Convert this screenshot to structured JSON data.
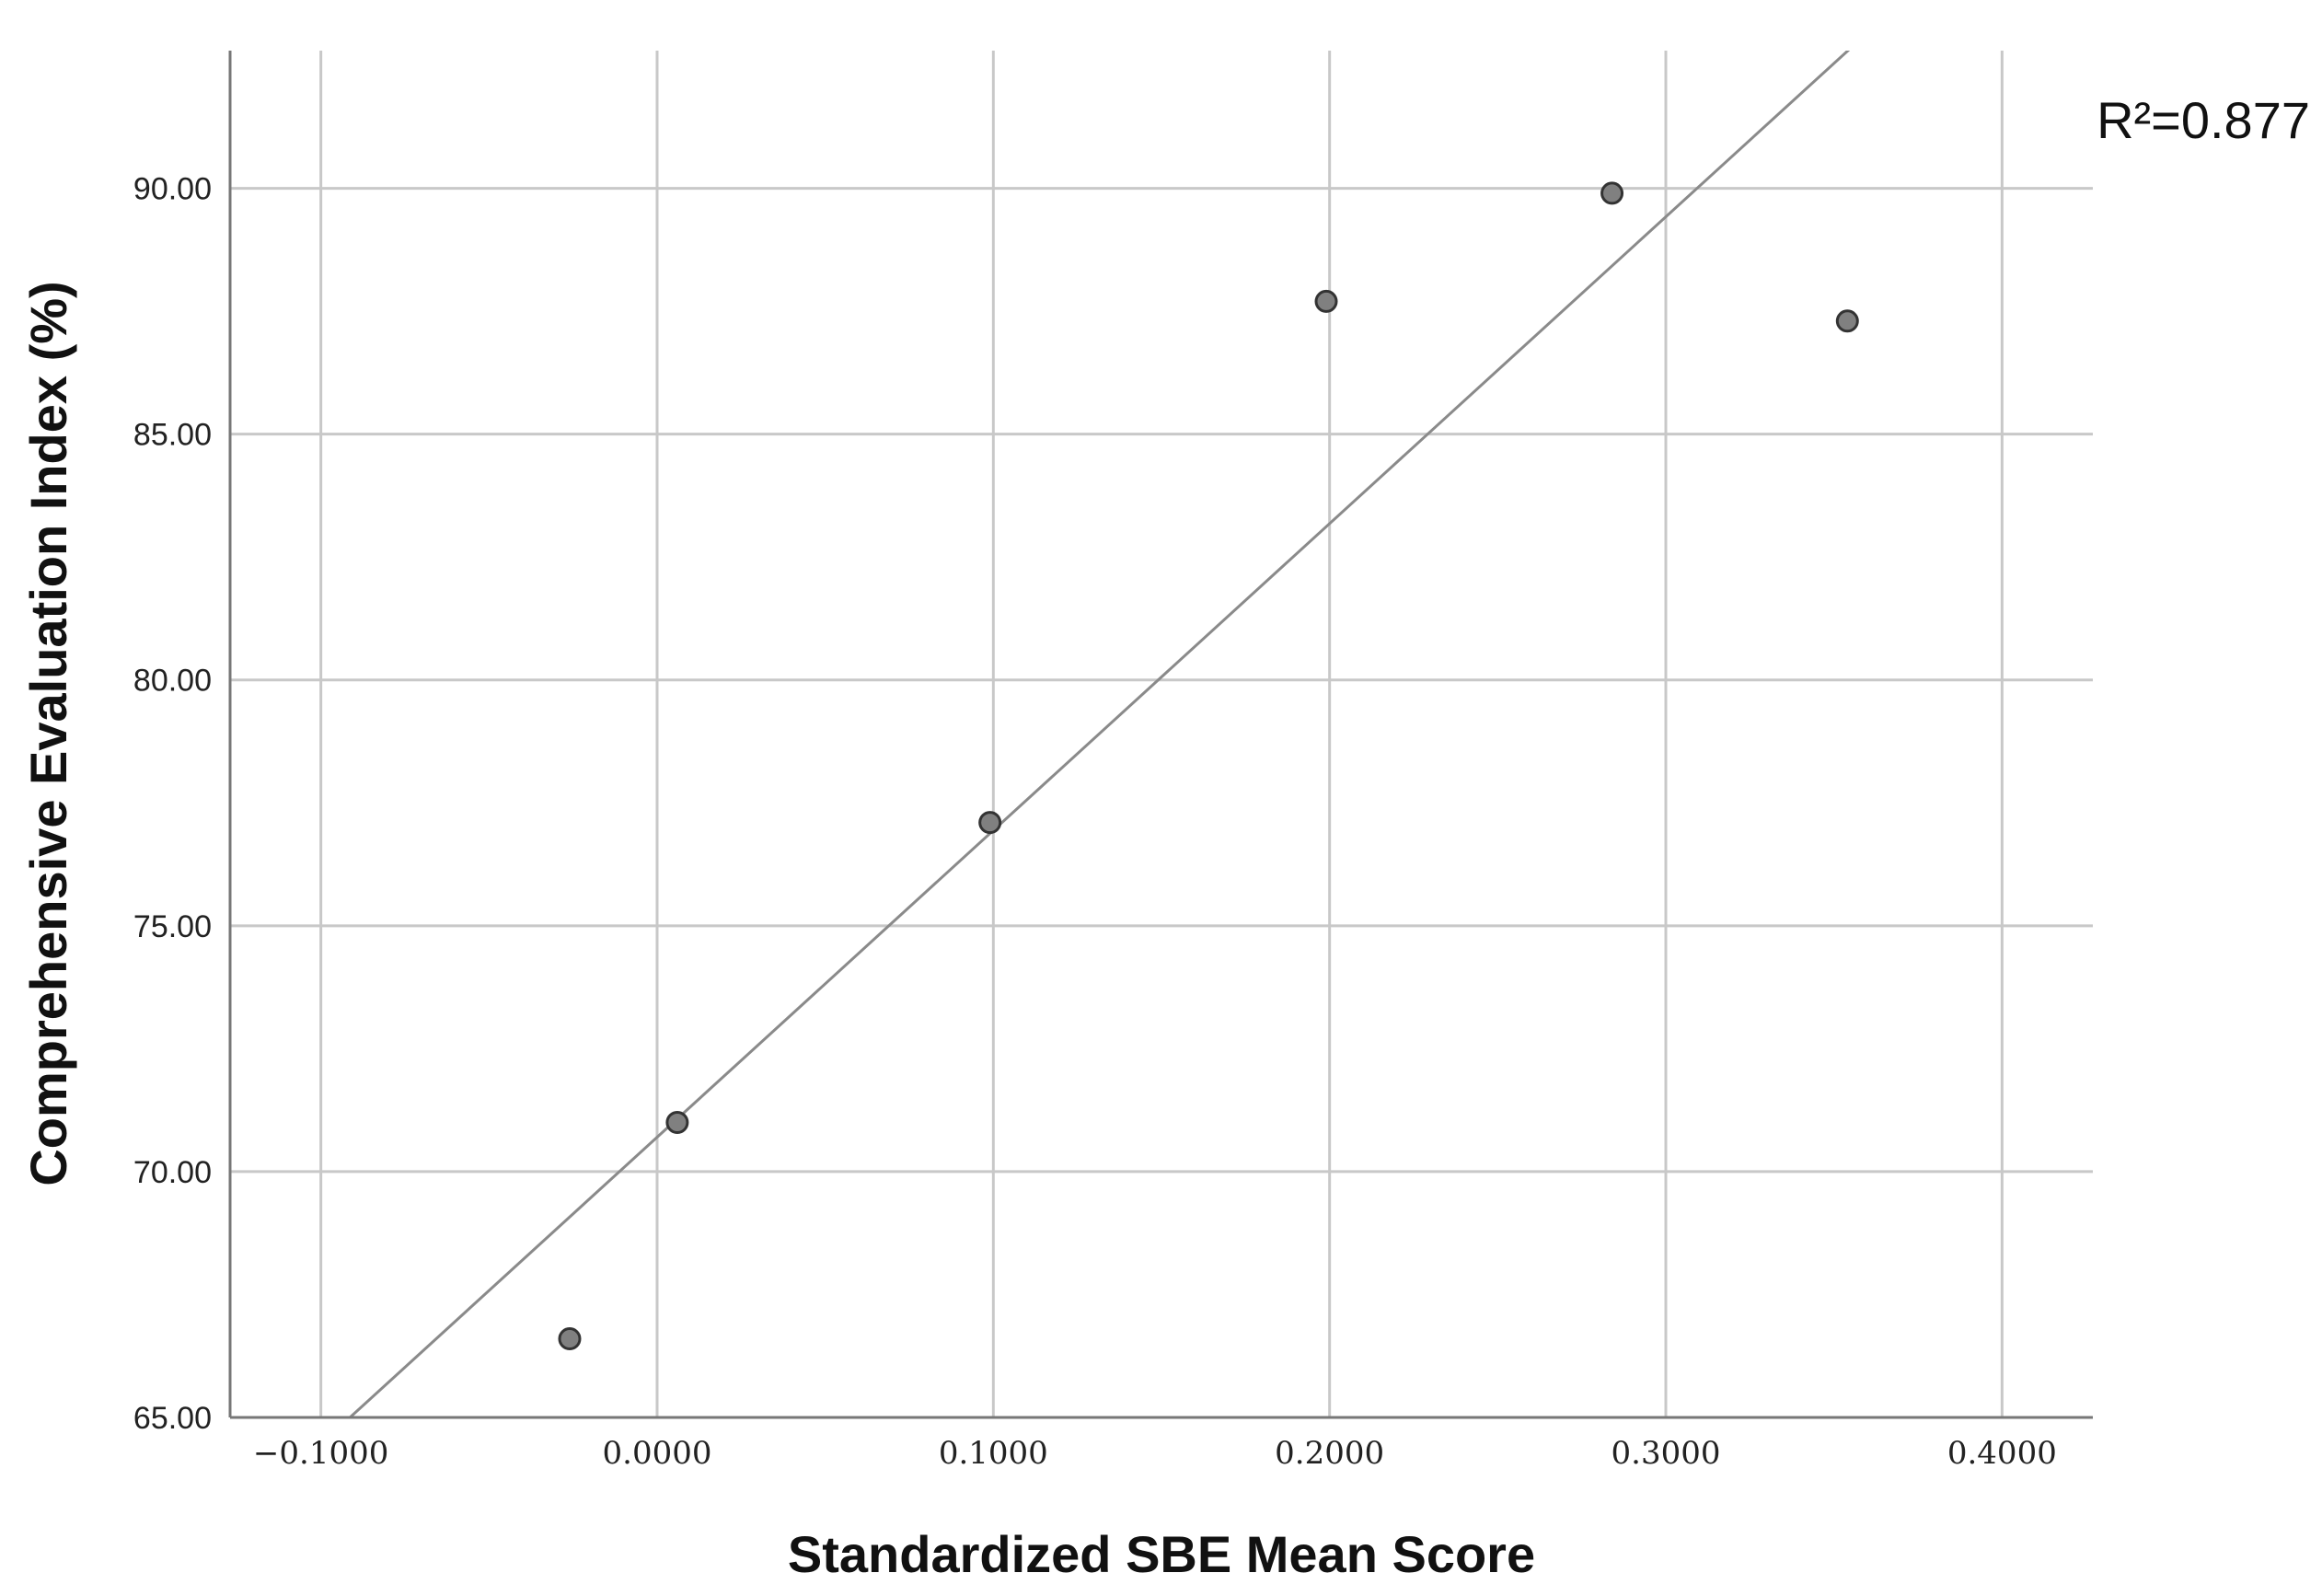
{
  "chart_data": {
    "type": "scatter",
    "xlabel": "Standardized SBE Mean Score",
    "ylabel": "Comprehensive Evaluation Index (%)",
    "xlim": [
      -0.127,
      0.427
    ],
    "ylim": [
      65.0,
      92.8
    ],
    "x_ticks": [
      -0.1,
      0.0,
      0.1,
      0.2,
      0.3,
      0.4
    ],
    "x_tick_labels": [
      "−0.1000",
      "0.0000",
      "0.1000",
      "0.2000",
      "0.3000",
      "0.4000"
    ],
    "y_ticks": [
      65.0,
      70.0,
      75.0,
      80.0,
      85.0,
      90.0
    ],
    "y_tick_labels": [
      "65.00",
      "70.00",
      "75.00",
      "80.00",
      "85.00",
      "90.00"
    ],
    "grid": true,
    "points": [
      {
        "x": -0.026,
        "y": 66.6
      },
      {
        "x": 0.006,
        "y": 71.0
      },
      {
        "x": 0.099,
        "y": 77.1
      },
      {
        "x": 0.199,
        "y": 87.7
      },
      {
        "x": 0.284,
        "y": 89.9
      },
      {
        "x": 0.354,
        "y": 87.3
      }
    ],
    "fit_line": {
      "type": "linear",
      "slope": 62.4,
      "intercept": 70.7,
      "r2_label": "R²=0.877"
    },
    "colors": {
      "point_fill": "#808080",
      "point_stroke": "#333333",
      "fit_line": "#8a8a8a",
      "grid": "#c8c8c8",
      "axis": "#777777"
    }
  }
}
